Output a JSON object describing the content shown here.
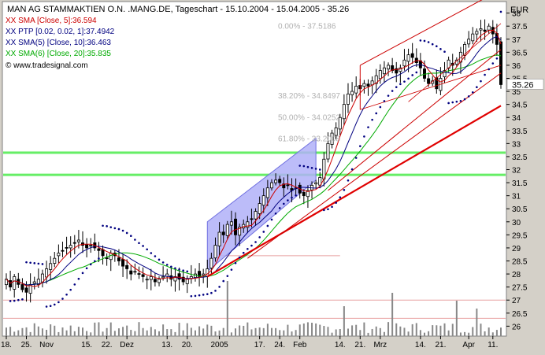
{
  "header": {
    "title": "MAN AG STAMMAKTIEN O.N. .MANG.DE, Tageschart - 15.10.2004 - 15.04.2005 - 35.26"
  },
  "legend": [
    {
      "text": "XX SMA [Close, 5]:36.594",
      "color": "#cc0000"
    },
    {
      "text": "XX PTP [0.02, 0.02, 1]:37.4942",
      "color": "#000080"
    },
    {
      "text": "XX SMA(5) [Close, 10]:36.463",
      "color": "#000080"
    },
    {
      "text": "XX SMA(6) [Close, 20]:35.835",
      "color": "#00aa00"
    }
  ],
  "copyright": "© www.tradesignal.com",
  "axis": {
    "unit": "EUR",
    "price_label": "35.26"
  },
  "fib_labels": [
    {
      "text": "0.00% - 37.5186",
      "price": 37.5186
    },
    {
      "text": "38.20% - 34.8497",
      "price": 34.8497
    },
    {
      "text": "50.00% - 34.0252",
      "price": 34.0252
    },
    {
      "text": "61.80% - 33.2008",
      "price": 33.2008
    }
  ],
  "colors": {
    "background": "#ffffff",
    "frame": "#d4d0c8",
    "up_candle": "#ffffff",
    "down_candle": "#000000",
    "sma5": "#cc0000",
    "sma10": "#000080",
    "sma20": "#00aa00",
    "parabolic_sar": "#000080",
    "trend_line": "#e00000",
    "channel": "#cc0000",
    "support_band": "#66ee66",
    "volume": "#888888",
    "highlight_channel": "#b0b0f8"
  },
  "chart_data": {
    "type": "candlestick",
    "title": "MAN AG STAMMAKTIEN O.N. .MANG.DE, Tageschart - 15.10.2004 - 15.04.2005 - 35.26",
    "ylabel": "EUR",
    "ylim": [
      25.8,
      38.2
    ],
    "y_ticks": [
      26,
      26.5,
      27,
      27.5,
      28,
      28.5,
      29,
      29.5,
      30,
      30.5,
      31,
      31.5,
      32,
      32.5,
      33,
      33.5,
      34,
      34.5,
      35,
      35.5,
      36,
      36.5,
      37,
      37.5,
      38
    ],
    "x_ticks": [
      {
        "label": "18.",
        "day": 0
      },
      {
        "label": "25.",
        "day": 5
      },
      {
        "label": "Nov",
        "day": 10
      },
      {
        "label": "15.",
        "day": 20
      },
      {
        "label": "22.",
        "day": 25
      },
      {
        "label": "Dez",
        "day": 30
      },
      {
        "label": "13.",
        "day": 40
      },
      {
        "label": "20.",
        "day": 45
      },
      {
        "label": "2005",
        "day": 53
      },
      {
        "label": "17.",
        "day": 63
      },
      {
        "label": "24.",
        "day": 68
      },
      {
        "label": "Feb",
        "day": 73
      },
      {
        "label": "14.",
        "day": 83
      },
      {
        "label": "21.",
        "day": 88
      },
      {
        "label": "Mrz",
        "day": 93
      },
      {
        "label": "14.",
        "day": 103
      },
      {
        "label": "21.",
        "day": 108
      },
      {
        "label": "Apr",
        "day": 115
      },
      {
        "label": "11.",
        "day": 121
      }
    ],
    "closes": [
      27.8,
      27.5,
      27.9,
      27.6,
      27.4,
      27.3,
      27.6,
      27.7,
      27.8,
      28.0,
      28.2,
      28.4,
      28.6,
      28.8,
      28.9,
      29.0,
      29.1,
      29.2,
      29.3,
      29.1,
      29.0,
      29.1,
      29.0,
      28.9,
      28.7,
      28.6,
      28.8,
      28.7,
      28.5,
      28.3,
      28.2,
      28.0,
      28.1,
      28.0,
      27.9,
      27.8,
      27.9,
      27.7,
      27.8,
      27.9,
      28.0,
      27.8,
      27.9,
      27.8,
      27.7,
      27.8,
      27.9,
      28.0,
      27.9,
      28.0,
      28.2,
      28.6,
      29.1,
      29.6,
      29.5,
      29.9,
      30.0,
      29.5,
      29.8,
      29.9,
      30.0,
      30.1,
      30.4,
      30.7,
      31.0,
      31.3,
      31.5,
      31.6,
      31.5,
      31.3,
      31.4,
      31.2,
      31.3,
      31.1,
      31.0,
      31.2,
      31.4,
      31.5,
      31.7,
      32.4,
      33.0,
      33.4,
      33.6,
      34.0,
      34.5,
      34.9,
      35.0,
      35.2,
      35.1,
      35.3,
      35.2,
      35.4,
      35.6,
      35.8,
      35.9,
      36.0,
      35.8,
      35.7,
      35.9,
      36.2,
      36.4,
      36.3,
      36.1,
      35.9,
      35.5,
      35.3,
      35.4,
      35.1,
      35.5,
      35.8,
      36.2,
      36.0,
      36.2,
      36.5,
      36.8,
      37.0,
      37.2,
      37.3,
      37.4,
      37.3,
      37.5,
      37.2,
      36.8,
      35.26
    ],
    "fibonacci": [
      {
        "level": "0.00%",
        "value": 37.5186
      },
      {
        "level": "38.20%",
        "value": 34.8497
      },
      {
        "level": "50.00%",
        "value": 34.0252
      },
      {
        "level": "61.80%",
        "value": 33.2008
      }
    ],
    "horizontal_lines": [
      32.65,
      31.8
    ],
    "last_price": 35.26,
    "indicators": [
      {
        "name": "XX SMA [Close, 5]",
        "last": 36.594
      },
      {
        "name": "XX PTP [0.02, 0.02, 1]",
        "last": 37.4942
      },
      {
        "name": "XX SMA(5) [Close, 10]",
        "last": 36.463
      },
      {
        "name": "XX SMA(6) [Close, 20]",
        "last": 35.835
      }
    ]
  }
}
